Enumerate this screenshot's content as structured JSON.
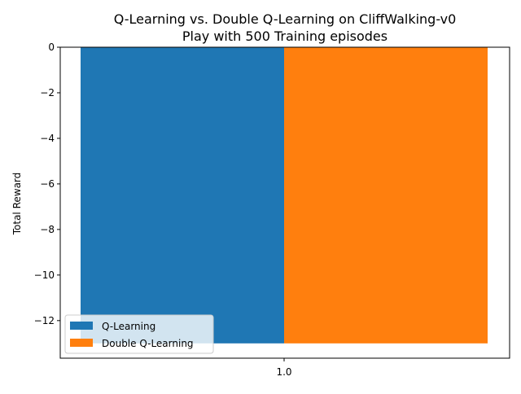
{
  "chart_data": {
    "type": "bar",
    "title": "Q-Learning vs. Double Q-Learning on CliffWalking-v0",
    "subtitle": "Play with 500 Training episodes",
    "xlabel": "",
    "ylabel": "Total Reward",
    "categories": [
      "1.0"
    ],
    "series": [
      {
        "name": "Q-Learning",
        "values": [
          -13
        ],
        "color": "#1f77b4"
      },
      {
        "name": "Double Q-Learning",
        "values": [
          -13
        ],
        "color": "#ff7f0e"
      }
    ],
    "ylim": [
      -13.65,
      0
    ],
    "yticks": [
      0,
      -2,
      -4,
      -6,
      -8,
      -10,
      -12
    ],
    "ytick_labels": [
      "0",
      "−2",
      "−4",
      "−6",
      "−8",
      "−10",
      "−12"
    ],
    "grid": false,
    "legend_position": "lower-left"
  }
}
